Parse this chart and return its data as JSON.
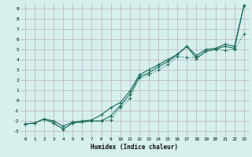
{
  "xlabel": "Humidex (Indice chaleur)",
  "background_color": "#d6f0ec",
  "grid_color": "#c0b8c8",
  "line_color": "#1a6b5a",
  "xlim": [
    -0.5,
    23.5
  ],
  "ylim": [
    -3.5,
    9.5
  ],
  "xticks": [
    0,
    1,
    2,
    3,
    4,
    5,
    6,
    7,
    8,
    9,
    10,
    11,
    12,
    13,
    14,
    15,
    16,
    17,
    18,
    19,
    20,
    21,
    22,
    23
  ],
  "yticks": [
    -3,
    -2,
    -1,
    0,
    1,
    2,
    3,
    4,
    5,
    6,
    7,
    8,
    9
  ],
  "series1_x": [
    0,
    1,
    2,
    3,
    4,
    5,
    6,
    7,
    8,
    9,
    10,
    11,
    12,
    13,
    14,
    15,
    16,
    17,
    18,
    19,
    20,
    21,
    22,
    23
  ],
  "series1_y": [
    -2.3,
    -2.2,
    -1.8,
    -2.2,
    -2.8,
    -2.2,
    -2.1,
    -2.0,
    -2.0,
    -1.9,
    -0.7,
    0.2,
    2.2,
    2.5,
    3.0,
    3.5,
    4.3,
    4.2,
    4.2,
    4.8,
    5.0,
    4.9,
    5.0,
    6.5
  ],
  "series2_x": [
    0,
    1,
    2,
    3,
    4,
    5,
    6,
    7,
    8,
    9,
    10,
    11,
    12,
    13,
    14,
    15,
    16,
    17,
    18,
    19,
    20,
    21,
    22,
    23
  ],
  "series2_y": [
    -2.3,
    -2.2,
    -1.8,
    -2.2,
    -2.8,
    -2.2,
    -2.1,
    -2.0,
    -2.0,
    -1.5,
    -0.5,
    0.6,
    2.3,
    2.7,
    3.3,
    3.8,
    4.5,
    5.3,
    4.1,
    4.8,
    5.0,
    5.3,
    5.1,
    9.3
  ],
  "series3_x": [
    0,
    1,
    2,
    3,
    4,
    5,
    6,
    7,
    8,
    9,
    10,
    11,
    12,
    13,
    14,
    15,
    16,
    17,
    18,
    19,
    20,
    21,
    22,
    23
  ],
  "series3_y": [
    -2.3,
    -2.2,
    -1.8,
    -2.0,
    -2.5,
    -2.1,
    -2.0,
    -1.9,
    -1.4,
    -0.7,
    -0.2,
    0.9,
    2.5,
    3.0,
    3.5,
    4.0,
    4.5,
    5.3,
    4.4,
    5.0,
    5.1,
    5.5,
    5.3,
    9.3
  ]
}
